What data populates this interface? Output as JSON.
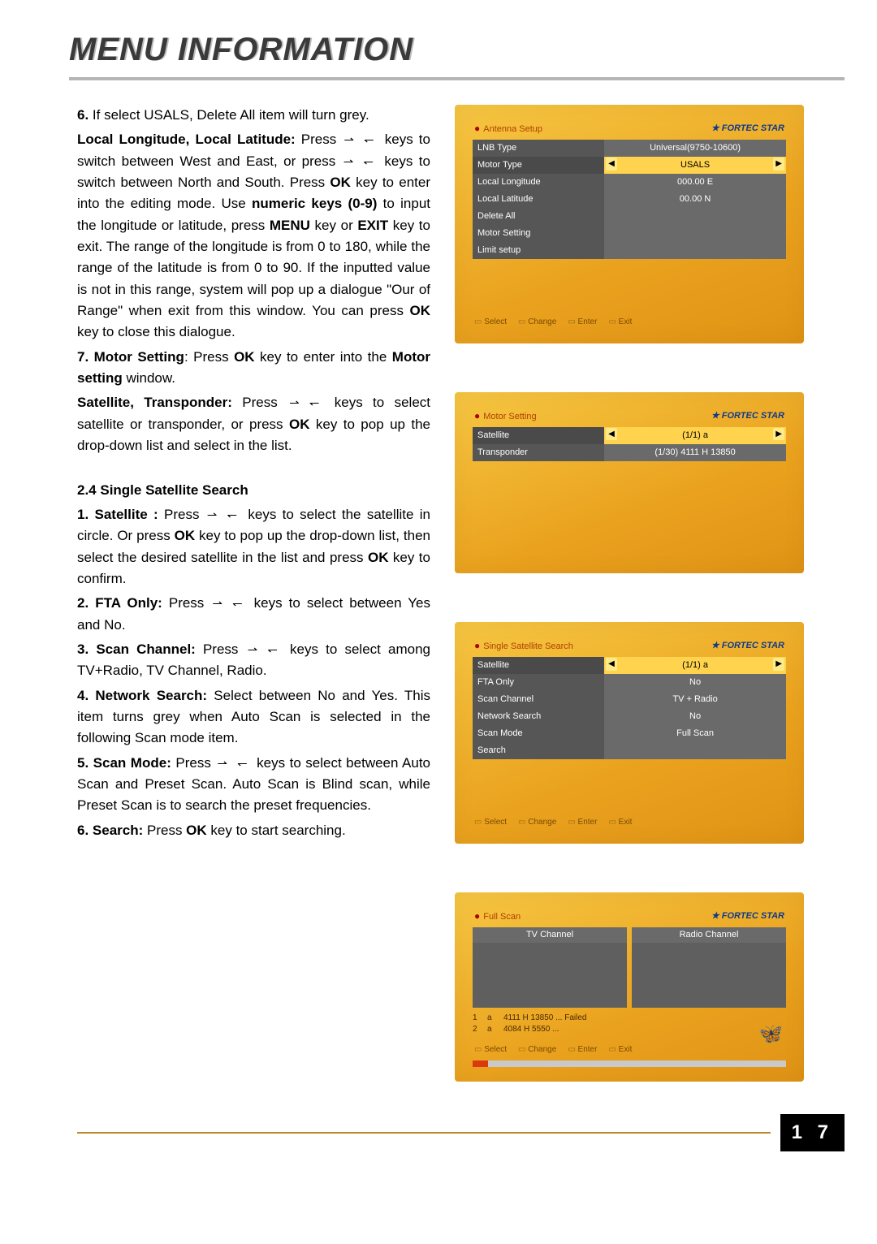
{
  "header": {
    "title": "MENU INFORMATION"
  },
  "page_number": "1 7",
  "body": {
    "p6_lead": "6.",
    "p6": " If select USALS, Delete All item will turn grey.",
    "ll_label": "Local Longitude, Local Latitude:",
    "ll_1": " Press ",
    "ll_2": " keys to switch between West and East, or    press ",
    "ll_3": " keys to switch between North and South. Press ",
    "ok": "OK",
    "ll_4": " key to enter into the editing mode. Use ",
    "numeric": "numeric keys (0-9)",
    "ll_5": " to input the longitude or latitude, press ",
    "menu": "MENU",
    "ll_6": " key or ",
    "exit": "EXIT",
    "ll_7": " key to exit. The range of the longitude is from 0 to 180, while the range of the latitude is from 0 to 90. If the inputted value is not in this range, system will pop up a dialogue \"Our of Range\" when exit from this window. You can press ",
    "ll_8": " key to close this dialogue.",
    "p7_lead": "7. Motor Setting",
    "p7_1": ": Press ",
    "p7_2": " key to enter into the ",
    "p7_ms": "Motor setting",
    "p7_3": " window.",
    "st_label": "Satellite, Transponder:",
    "st_1": " Press ",
    "st_2": " keys to select satellite or transponder, or press ",
    "st_3": " key to pop up the drop-down list and select in the list.",
    "sec24": "2.4 Single Satellite Search",
    "s1_lead": "1. Satellite :",
    "s1_1": "Press ",
    "s1_2": " keys to select the satellite in circle. Or press ",
    "s1_3": " key to pop up the drop-down list, then select  the desired satellite in the list and press ",
    "s1_4": " key to confirm.",
    "s2_lead": "2. FTA Only:",
    "s2_1": " Press ",
    "s2_2": " keys to select between Yes and No.",
    "s3_lead": "3. Scan Channel:",
    "s3_1": " Press ",
    "s3_2": " keys to select among TV+Radio, TV Channel, Radio.",
    "s4_lead": "4. Network Search:",
    "s4_1": " Select between No and Yes. This item turns grey when Auto Scan is selected in the following Scan mode item.",
    "s5_lead": "5. Scan Mode:",
    "s5_1": " Press ",
    "s5_2": " keys to select between Auto Scan and Preset Scan. Auto Scan is Blind scan, while Preset Scan is to search the preset frequencies.",
    "s6_lead": "6. Search:",
    "s6_1": " Press ",
    "s6_2": " key to start searching."
  },
  "arrow_glyph": "⇀ ↽",
  "screens": {
    "brand": "FORTEC STAR",
    "footer": {
      "select": "Select",
      "change": "Change",
      "enter": "Enter",
      "exit": "Exit"
    },
    "antenna": {
      "crumb": "Antenna Setup",
      "rows": [
        {
          "label": "LNB Type",
          "value": "Universal(9750-10600)",
          "sel": false
        },
        {
          "label": "Motor Type",
          "value": "USALS",
          "sel": true,
          "arrows": true
        },
        {
          "label": "Local Longitude",
          "value": "000.00 E",
          "sel": false
        },
        {
          "label": "Local Latitude",
          "value": "00.00 N",
          "sel": false
        },
        {
          "label": "Delete All",
          "value": "",
          "sel": false
        },
        {
          "label": "Motor Setting",
          "value": "",
          "sel": false
        },
        {
          "label": "Limit setup",
          "value": "",
          "sel": false
        }
      ]
    },
    "motor": {
      "crumb": "Motor Setting",
      "rows": [
        {
          "label": "Satellite",
          "value": "(1/1) a",
          "sel": true,
          "arrows": true
        },
        {
          "label": "Transponder",
          "value": "(1/30) 4111 H 13850",
          "sel": false
        }
      ]
    },
    "single": {
      "crumb": "Single Satellite Search",
      "rows": [
        {
          "label": "Satellite",
          "value": "(1/1) a",
          "sel": true,
          "arrows": true
        },
        {
          "label": "FTA Only",
          "value": "No",
          "sel": false
        },
        {
          "label": "Scan Channel",
          "value": "TV + Radio",
          "sel": false
        },
        {
          "label": "Network Search",
          "value": "No",
          "sel": false
        },
        {
          "label": "Scan Mode",
          "value": "Full Scan",
          "sel": false
        },
        {
          "label": "Search",
          "value": "",
          "sel": false
        }
      ]
    },
    "fullscan": {
      "crumb": "Full Scan",
      "tv_header": "TV Channel",
      "radio_header": "Radio Channel",
      "log": [
        {
          "n": "1",
          "ch": "a",
          "info": "4111  H 13850 ... Failed"
        },
        {
          "n": "2",
          "ch": "a",
          "info": "4084  H 5550  ..."
        }
      ],
      "progress_pct": 5
    }
  },
  "colors": {
    "header_text": "#3a3a3a",
    "header_shadow": "#bcbcbc",
    "rule": "#b5b5b5",
    "card_grad_a": "#f6c642",
    "card_grad_b": "#e09315",
    "row_bg": "#6a6a6a",
    "row_label_bg": "#565656",
    "row_sel_bg": "#ffd34d",
    "brand_color": "#103a8a",
    "footer_line": "#b58a2a",
    "progress_bar": "#d93a10"
  }
}
